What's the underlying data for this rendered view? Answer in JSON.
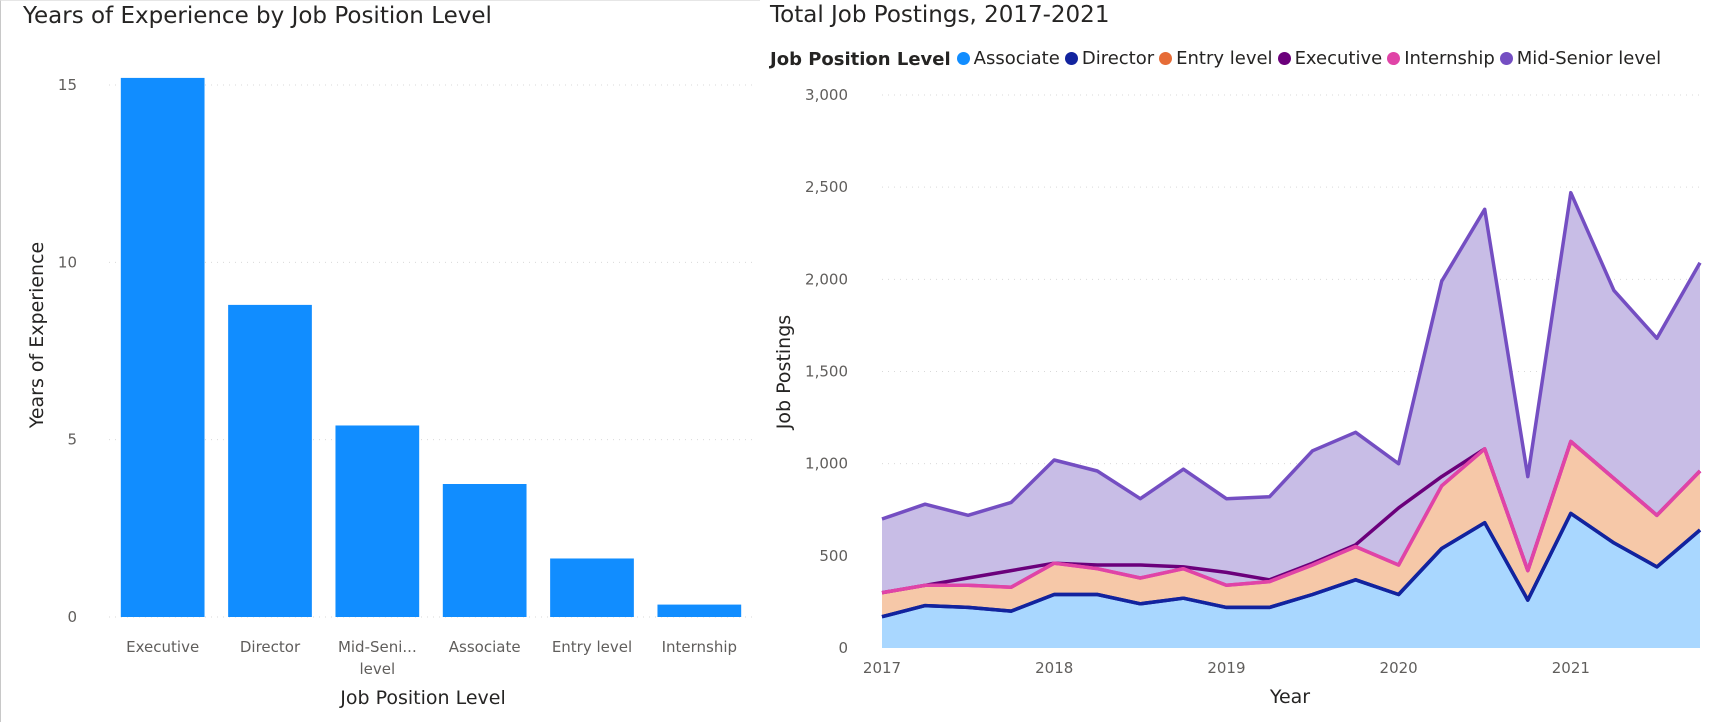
{
  "left_chart": {
    "title": "Years of Experience by Job Position Level",
    "chart_data": {
      "type": "bar",
      "categories": [
        "Executive",
        "Director",
        "Mid-Seni...\nlevel",
        "Associate",
        "Entry level",
        "Internship"
      ],
      "values": [
        15.2,
        8.8,
        5.4,
        3.75,
        1.65,
        0.35
      ],
      "xlabel": "Job Position Level",
      "ylabel": "Years of Experience",
      "ylim": [
        0,
        15
      ],
      "yticks": [
        "0",
        "5",
        "10",
        "15"
      ],
      "bar_color": "#118dff",
      "grid": true
    }
  },
  "right_chart": {
    "title": "Total Job Postings, 2017-2021",
    "legend_title": "Job Position Level",
    "chart_data": {
      "type": "area",
      "x": [
        2017.0,
        2017.25,
        2017.5,
        2017.75,
        2018.0,
        2018.25,
        2018.5,
        2018.75,
        2019.0,
        2019.25,
        2019.5,
        2019.75,
        2020.0,
        2020.25,
        2020.5,
        2020.75,
        2021.0,
        2021.25,
        2021.5,
        2021.75
      ],
      "xticks": [
        "2017",
        "2018",
        "2019",
        "2020",
        "2021"
      ],
      "xlabel": "Year",
      "ylabel": "Job Postings",
      "ylim": [
        0,
        3000
      ],
      "yticks": [
        "0",
        "500",
        "1,000",
        "1,500",
        "2,000",
        "2,500",
        "3,000"
      ],
      "grid": true,
      "legend_position": "top",
      "series": [
        {
          "name": "Associate",
          "color": "#118dff",
          "line_color": "#12239e",
          "fill": "#a9d7ff",
          "values": [
            170,
            230,
            220,
            200,
            290,
            290,
            240,
            270,
            220,
            220,
            290,
            370,
            290,
            540,
            680,
            260,
            730,
            570,
            440,
            640
          ]
        },
        {
          "name": "Director",
          "color": "#12239e",
          "line_color": "#12239e",
          "fill": "none",
          "values": [
            170,
            230,
            220,
            200,
            290,
            290,
            240,
            270,
            220,
            220,
            290,
            370,
            290,
            540,
            680,
            260,
            730,
            570,
            440,
            640
          ]
        },
        {
          "name": "Entry level",
          "color": "#e66c37",
          "line_color": "#e044a7",
          "fill": "#f6c8a8",
          "values": [
            300,
            340,
            340,
            330,
            460,
            430,
            380,
            430,
            340,
            360,
            450,
            550,
            450,
            880,
            1080,
            420,
            1120,
            920,
            720,
            960
          ]
        },
        {
          "name": "Executive",
          "color": "#6b007b",
          "line_color": "#6b007b",
          "fill": "none",
          "values": [
            300,
            340,
            380,
            420,
            460,
            450,
            450,
            440,
            410,
            370,
            460,
            560,
            760,
            930,
            1080,
            420,
            1120,
            920,
            720,
            960
          ]
        },
        {
          "name": "Internship",
          "color": "#e044a7",
          "line_color": "#e044a7",
          "fill": "none",
          "values": [
            300,
            340,
            340,
            330,
            460,
            430,
            380,
            430,
            340,
            360,
            450,
            550,
            450,
            880,
            1080,
            420,
            1120,
            920,
            720,
            960
          ]
        },
        {
          "name": "Mid-Senior level",
          "color": "#744ec2",
          "line_color": "#744ec2",
          "fill": "#c8bde6",
          "values": [
            700,
            780,
            720,
            790,
            1020,
            960,
            810,
            970,
            810,
            820,
            1070,
            1170,
            1000,
            1990,
            2380,
            930,
            2470,
            1940,
            1680,
            2090
          ]
        }
      ]
    }
  }
}
